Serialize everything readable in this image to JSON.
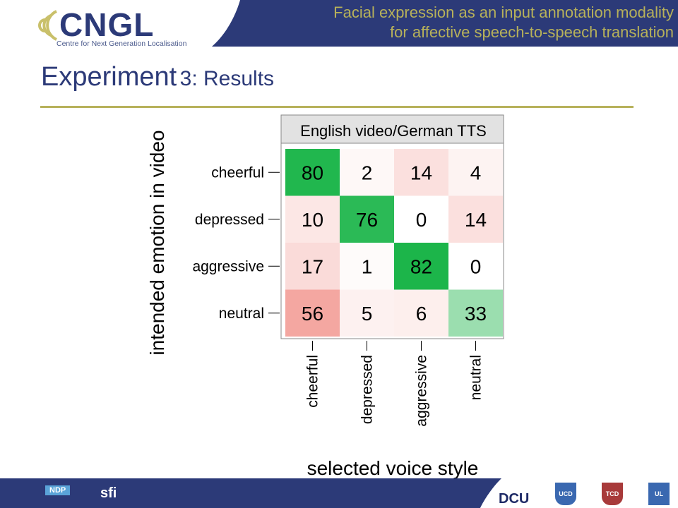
{
  "header": {
    "title_line1": "Facial expression as an input annotation modality",
    "title_line2": "for affective speech-to-speech translation",
    "logo_name": "CNGL",
    "logo_tagline": "Centre for Next Generation Localisation"
  },
  "slide": {
    "title_main": "Experiment",
    "title_sub": "3: Results"
  },
  "colors": {
    "header_band": "#2c3a78",
    "accent_rule": "#b7b15a",
    "footer_band": "#2c3a78",
    "panel_strip": "#e2e2e2",
    "high_correct": "#1cb54a",
    "high_wrong": "#f4a09a"
  },
  "chart_data": {
    "type": "heatmap",
    "title": "English video/German TTS",
    "xlabel": "selected voice style",
    "ylabel": "intended emotion in video",
    "columns": [
      "cheerful",
      "depressed",
      "aggressive",
      "neutral"
    ],
    "rows": [
      "cheerful",
      "depressed",
      "aggressive",
      "neutral"
    ],
    "values": [
      [
        80,
        2,
        14,
        4
      ],
      [
        10,
        76,
        0,
        14
      ],
      [
        17,
        1,
        82,
        0
      ],
      [
        56,
        5,
        6,
        33
      ]
    ],
    "diagonal_color": "green",
    "off_diagonal_color": "red"
  },
  "footer": {
    "logos": [
      "NDP",
      "sfi",
      "DCU",
      "UCD",
      "TCD",
      "UL"
    ]
  }
}
